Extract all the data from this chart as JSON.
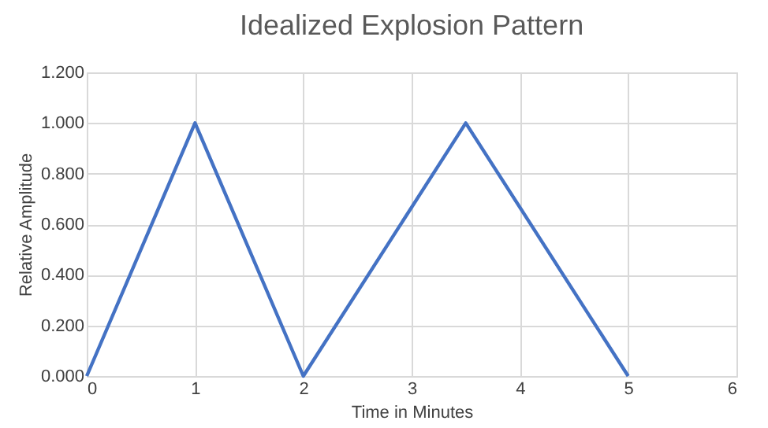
{
  "chart_data": {
    "type": "line",
    "title": "Idealized Explosion Pattern",
    "xlabel": "Time in Minutes",
    "ylabel": "Relative Amplitude",
    "x": [
      0,
      1,
      2,
      3.5,
      5
    ],
    "series": [
      {
        "color": "#4472c4",
        "values": [
          0,
          1,
          0,
          1,
          0
        ]
      }
    ],
    "xlim": [
      0,
      6
    ],
    "xticks": [
      0,
      1,
      2,
      3,
      4,
      5,
      6
    ],
    "ylim": [
      0,
      1.2
    ],
    "yticks": [
      {
        "value": 0,
        "label": "0.000"
      },
      {
        "value": 0.2,
        "label": "0.200"
      },
      {
        "value": 0.4,
        "label": "0.400"
      },
      {
        "value": 0.6,
        "label": "0.600"
      },
      {
        "value": 0.8,
        "label": "0.800"
      },
      {
        "value": 1.0,
        "label": "1.000"
      },
      {
        "value": 1.2,
        "label": "1.200"
      }
    ],
    "grid": true,
    "marker": "none",
    "line_style": "solid"
  }
}
